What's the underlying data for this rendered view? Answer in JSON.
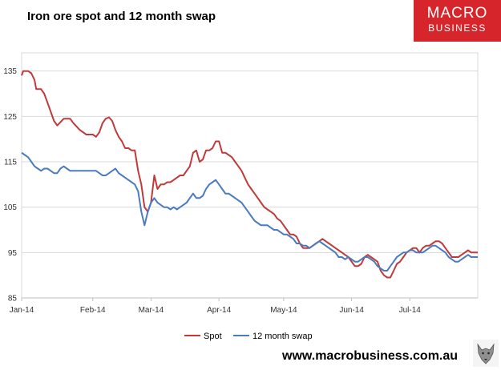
{
  "title": "Iron ore spot and 12 month swap",
  "logo": {
    "line1": "MACRO",
    "line2": "BUSINESS"
  },
  "url": "www.macrobusiness.com.au",
  "chart_data": {
    "type": "line",
    "title": "Iron ore spot and 12 month swap",
    "ylim": [
      85,
      139
    ],
    "yticks": [
      85,
      95,
      105,
      115,
      125,
      135
    ],
    "ytick_labels": [
      "85",
      "95",
      "105",
      "115",
      "125",
      "135"
    ],
    "xlim": [
      0,
      141
    ],
    "xticks": [
      {
        "x": 0,
        "label": "Jan-14"
      },
      {
        "x": 22,
        "label": "Feb-14"
      },
      {
        "x": 40,
        "label": "Mar-14"
      },
      {
        "x": 61,
        "label": "Apr-14"
      },
      {
        "x": 81,
        "label": "May-14"
      },
      {
        "x": 102,
        "label": "Jun-14"
      },
      {
        "x": 120,
        "label": "Jul-14"
      }
    ],
    "grid": true,
    "legend_position": "bottom",
    "series": [
      {
        "name": "Spot",
        "color": "#c0393b",
        "points": [
          [
            0,
            134
          ],
          [
            0.5,
            135
          ],
          [
            2,
            135
          ],
          [
            3,
            134.5
          ],
          [
            4,
            133
          ],
          [
            4.5,
            131
          ],
          [
            6,
            131
          ],
          [
            7,
            130
          ],
          [
            8,
            128
          ],
          [
            10,
            124
          ],
          [
            11,
            123
          ],
          [
            13,
            124.5
          ],
          [
            15,
            124.5
          ],
          [
            16,
            123.5
          ],
          [
            18,
            122
          ],
          [
            20,
            121
          ],
          [
            21,
            121
          ],
          [
            22,
            121
          ],
          [
            23,
            120.5
          ],
          [
            24,
            121.5
          ],
          [
            25,
            123.5
          ],
          [
            26,
            124.5
          ],
          [
            27,
            124.8
          ],
          [
            28,
            124
          ],
          [
            29,
            122
          ],
          [
            30,
            120.5
          ],
          [
            31,
            119.5
          ],
          [
            32,
            118
          ],
          [
            33,
            118
          ],
          [
            34,
            117.5
          ],
          [
            35,
            117.5
          ],
          [
            36,
            113
          ],
          [
            37,
            110
          ],
          [
            38,
            105
          ],
          [
            39,
            104
          ],
          [
            40,
            106
          ],
          [
            41,
            112
          ],
          [
            42,
            109
          ],
          [
            43,
            110
          ],
          [
            44,
            110
          ],
          [
            45,
            110.5
          ],
          [
            46,
            110.5
          ],
          [
            47,
            111
          ],
          [
            48,
            111.5
          ],
          [
            49,
            112
          ],
          [
            50,
            112
          ],
          [
            51,
            113
          ],
          [
            52,
            114
          ],
          [
            53,
            117
          ],
          [
            54,
            117.5
          ],
          [
            55,
            115
          ],
          [
            56,
            115.5
          ],
          [
            57,
            117.5
          ],
          [
            58,
            117.5
          ],
          [
            59,
            118
          ],
          [
            60,
            119.5
          ],
          [
            61,
            119.5
          ],
          [
            62,
            117
          ],
          [
            63,
            117
          ],
          [
            64,
            116.5
          ],
          [
            65,
            116
          ],
          [
            66,
            115
          ],
          [
            67,
            114
          ],
          [
            68,
            113
          ],
          [
            69,
            111.5
          ],
          [
            70,
            110
          ],
          [
            71,
            109
          ],
          [
            72,
            108
          ],
          [
            73,
            107
          ],
          [
            74,
            106
          ],
          [
            75,
            105
          ],
          [
            76,
            104.5
          ],
          [
            77,
            104
          ],
          [
            78,
            103.5
          ],
          [
            79,
            102.5
          ],
          [
            80,
            102
          ],
          [
            81,
            101
          ],
          [
            82,
            100
          ],
          [
            83,
            99
          ],
          [
            84,
            99
          ],
          [
            85,
            98.5
          ],
          [
            86,
            97
          ],
          [
            87,
            96
          ],
          [
            88,
            96
          ],
          [
            89,
            96
          ],
          [
            90,
            96.5
          ],
          [
            91,
            97
          ],
          [
            92,
            97.5
          ],
          [
            93,
            98
          ],
          [
            94,
            97.5
          ],
          [
            95,
            97
          ],
          [
            96,
            96.5
          ],
          [
            97,
            96
          ],
          [
            98,
            95.5
          ],
          [
            99,
            95
          ],
          [
            100,
            94.5
          ],
          [
            101,
            94
          ],
          [
            102,
            93
          ],
          [
            103,
            92
          ],
          [
            104,
            92
          ],
          [
            105,
            92.5
          ],
          [
            106,
            94
          ],
          [
            107,
            94.5
          ],
          [
            108,
            94
          ],
          [
            109,
            93.5
          ],
          [
            110,
            93
          ],
          [
            111,
            91
          ],
          [
            112,
            90
          ],
          [
            113,
            89.5
          ],
          [
            114,
            89.5
          ],
          [
            115,
            91
          ],
          [
            116,
            92.5
          ],
          [
            117,
            93
          ],
          [
            118,
            94
          ],
          [
            119,
            95
          ],
          [
            120,
            95.5
          ],
          [
            121,
            96
          ],
          [
            122,
            96
          ],
          [
            123,
            95
          ],
          [
            124,
            96
          ],
          [
            125,
            96.5
          ],
          [
            126,
            96.5
          ],
          [
            127,
            97
          ],
          [
            128,
            97.5
          ],
          [
            129,
            97.5
          ],
          [
            130,
            97
          ],
          [
            131,
            96
          ],
          [
            132,
            95
          ],
          [
            133,
            94
          ],
          [
            134,
            94
          ],
          [
            135,
            94
          ],
          [
            136,
            94.5
          ],
          [
            137,
            95
          ],
          [
            138,
            95.5
          ],
          [
            139,
            95
          ],
          [
            140,
            95
          ],
          [
            141,
            95
          ]
        ]
      },
      {
        "name": "12 month swap",
        "color": "#4a7bbf",
        "points": [
          [
            0,
            117
          ],
          [
            1,
            116.5
          ],
          [
            2,
            116
          ],
          [
            3,
            115
          ],
          [
            4,
            114
          ],
          [
            5,
            113.5
          ],
          [
            6,
            113
          ],
          [
            7,
            113.5
          ],
          [
            8,
            113.5
          ],
          [
            9,
            113
          ],
          [
            10,
            112.5
          ],
          [
            11,
            112.5
          ],
          [
            12,
            113.5
          ],
          [
            13,
            114
          ],
          [
            14,
            113.5
          ],
          [
            15,
            113
          ],
          [
            16,
            113
          ],
          [
            17,
            113
          ],
          [
            18,
            113
          ],
          [
            19,
            113
          ],
          [
            20,
            113
          ],
          [
            21,
            113
          ],
          [
            22,
            113
          ],
          [
            23,
            113
          ],
          [
            24,
            112.5
          ],
          [
            25,
            112
          ],
          [
            26,
            112
          ],
          [
            27,
            112.5
          ],
          [
            28,
            113
          ],
          [
            29,
            113.5
          ],
          [
            30,
            112.5
          ],
          [
            31,
            112
          ],
          [
            32,
            111.5
          ],
          [
            33,
            111
          ],
          [
            34,
            110.5
          ],
          [
            35,
            110
          ],
          [
            36,
            108.5
          ],
          [
            37,
            104
          ],
          [
            38,
            101
          ],
          [
            39,
            104
          ],
          [
            40,
            106
          ],
          [
            41,
            107
          ],
          [
            42,
            106
          ],
          [
            43,
            105.5
          ],
          [
            44,
            105
          ],
          [
            45,
            105
          ],
          [
            46,
            104.5
          ],
          [
            47,
            105
          ],
          [
            48,
            104.5
          ],
          [
            49,
            105
          ],
          [
            50,
            105.5
          ],
          [
            51,
            106
          ],
          [
            52,
            107
          ],
          [
            53,
            108
          ],
          [
            54,
            107
          ],
          [
            55,
            107
          ],
          [
            56,
            107.5
          ],
          [
            57,
            109
          ],
          [
            58,
            110
          ],
          [
            59,
            110.5
          ],
          [
            60,
            111
          ],
          [
            61,
            110
          ],
          [
            62,
            109
          ],
          [
            63,
            108
          ],
          [
            64,
            108
          ],
          [
            65,
            107.5
          ],
          [
            66,
            107
          ],
          [
            67,
            106.5
          ],
          [
            68,
            106
          ],
          [
            69,
            105
          ],
          [
            70,
            104
          ],
          [
            71,
            103
          ],
          [
            72,
            102
          ],
          [
            73,
            101.5
          ],
          [
            74,
            101
          ],
          [
            75,
            101
          ],
          [
            76,
            101
          ],
          [
            77,
            100.5
          ],
          [
            78,
            100
          ],
          [
            79,
            100
          ],
          [
            80,
            99.5
          ],
          [
            81,
            99
          ],
          [
            82,
            99
          ],
          [
            83,
            98.5
          ],
          [
            84,
            98
          ],
          [
            85,
            97
          ],
          [
            86,
            97
          ],
          [
            87,
            96.5
          ],
          [
            88,
            96.5
          ],
          [
            89,
            96
          ],
          [
            90,
            96.5
          ],
          [
            91,
            97
          ],
          [
            92,
            97.5
          ],
          [
            93,
            97
          ],
          [
            94,
            96.5
          ],
          [
            95,
            96
          ],
          [
            96,
            95.5
          ],
          [
            97,
            95
          ],
          [
            98,
            94
          ],
          [
            99,
            94
          ],
          [
            100,
            93.5
          ],
          [
            101,
            94
          ],
          [
            102,
            93.5
          ],
          [
            103,
            93
          ],
          [
            104,
            93
          ],
          [
            105,
            93.5
          ],
          [
            106,
            94
          ],
          [
            107,
            94
          ],
          [
            108,
            93.5
          ],
          [
            109,
            93
          ],
          [
            110,
            92
          ],
          [
            111,
            91.5
          ],
          [
            112,
            91
          ],
          [
            113,
            91
          ],
          [
            114,
            92
          ],
          [
            115,
            93
          ],
          [
            116,
            94
          ],
          [
            117,
            94.5
          ],
          [
            118,
            95
          ],
          [
            119,
            95
          ],
          [
            120,
            95.5
          ],
          [
            121,
            95.5
          ],
          [
            122,
            95
          ],
          [
            123,
            95
          ],
          [
            124,
            95
          ],
          [
            125,
            95.5
          ],
          [
            126,
            96
          ],
          [
            127,
            96.5
          ],
          [
            128,
            96.5
          ],
          [
            129,
            96
          ],
          [
            130,
            95.5
          ],
          [
            131,
            95
          ],
          [
            132,
            94
          ],
          [
            133,
            93.5
          ],
          [
            134,
            93
          ],
          [
            135,
            93
          ],
          [
            136,
            93.5
          ],
          [
            137,
            94
          ],
          [
            138,
            94.5
          ],
          [
            139,
            94
          ],
          [
            140,
            94
          ],
          [
            141,
            94
          ]
        ]
      }
    ]
  }
}
